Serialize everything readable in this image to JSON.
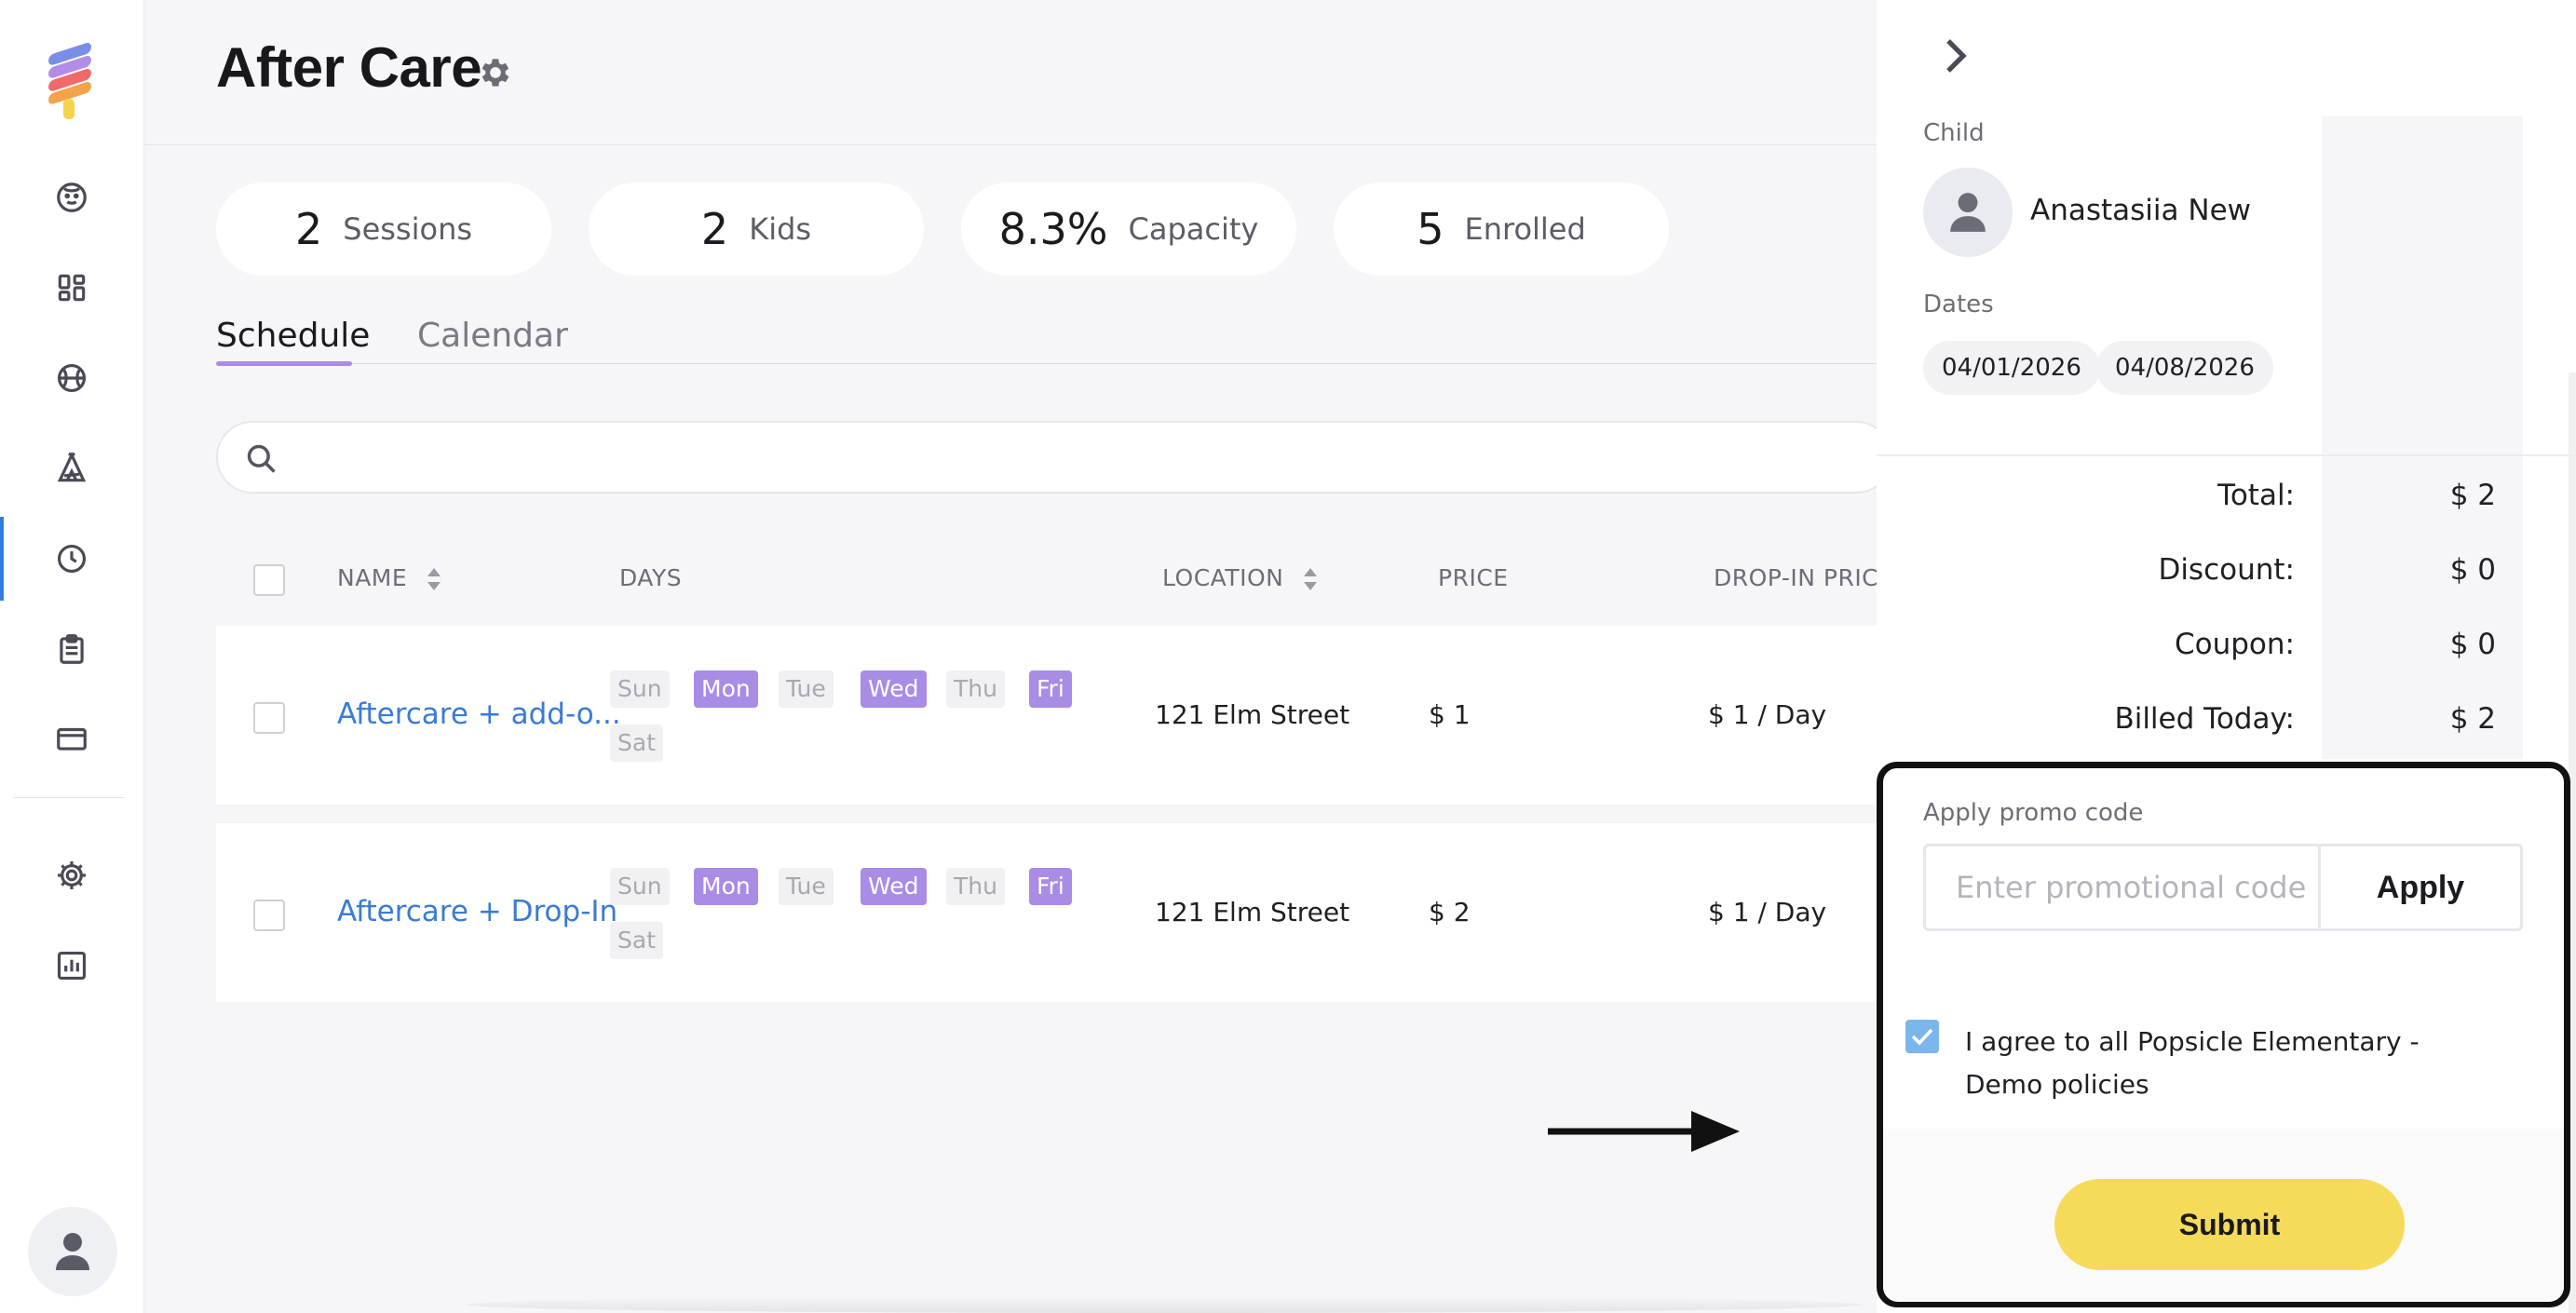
{
  "page": {
    "title": "After Care"
  },
  "stats": [
    {
      "value": "2",
      "label": "Sessions"
    },
    {
      "value": "2",
      "label": "Kids"
    },
    {
      "value": "8.3%",
      "label": "Capacity"
    },
    {
      "value": "5",
      "label": "Enrolled"
    }
  ],
  "tabs": {
    "schedule": "Schedule",
    "calendar": "Calendar"
  },
  "search": {
    "placeholder": ""
  },
  "table": {
    "headers": {
      "name": "NAME",
      "days": "DAYS",
      "location": "LOCATION",
      "price": "PRICE",
      "dropin": "DROP-IN PRICE"
    },
    "days": [
      "Sun",
      "Mon",
      "Tue",
      "Wed",
      "Thu",
      "Fri",
      "Sat"
    ],
    "rows": [
      {
        "name": "Aftercare + add-o...",
        "active_days": [
          "Mon",
          "Wed",
          "Fri"
        ],
        "location": "121 Elm Street",
        "price": "$ 1",
        "dropin": "$ 1 / Day"
      },
      {
        "name": "Aftercare + Drop-In",
        "active_days": [
          "Mon",
          "Wed",
          "Fri"
        ],
        "location": "121 Elm Street",
        "price": "$ 2",
        "dropin": "$ 1 / Day"
      }
    ]
  },
  "panel": {
    "child_label": "Child",
    "child_name": "Anastasiia New",
    "dates_label": "Dates",
    "dates": [
      "04/01/2026",
      "04/08/2026"
    ],
    "summary": [
      {
        "label": "Total:",
        "value": "$ 2"
      },
      {
        "label": "Discount:",
        "value": "$ 0"
      },
      {
        "label": "Coupon:",
        "value": "$ 0"
      },
      {
        "label": "Billed Today:",
        "value": "$ 2"
      }
    ],
    "promo_label": "Apply promo code",
    "promo_placeholder": "Enter promotional code",
    "apply_label": "Apply",
    "agree_text": "I agree to all Popsicle Elementary - Demo policies",
    "agree_checked": true,
    "submit_label": "Submit"
  },
  "colors": {
    "accent": "#a98ce6",
    "link": "#3a7bd5",
    "submit": "#f6db5b",
    "checkbox": "#7ab6ec"
  },
  "icons": {
    "sidebar": [
      "popsicle-logo-icon",
      "child-face-icon",
      "dashboard-icon",
      "basketball-icon",
      "camp-tent-icon",
      "clock-icon",
      "clipboard-icon",
      "credit-card-icon",
      "gear-icon",
      "report-chart-icon",
      "user-avatar-icon"
    ]
  }
}
